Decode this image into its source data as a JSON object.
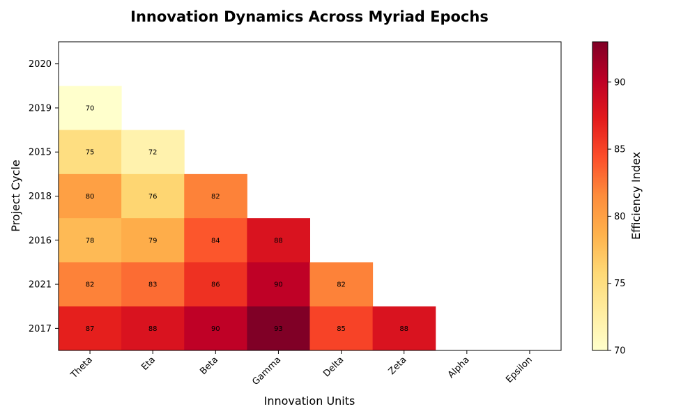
{
  "chart_data": {
    "type": "heatmap",
    "title": "Innovation Dynamics Across Myriad Epochs",
    "xlabel": "Innovation Units",
    "ylabel": "Project Cycle",
    "x_categories": [
      "Theta",
      "Eta",
      "Beta",
      "Gamma",
      "Delta",
      "Zeta",
      "Alpha",
      "Epsilon"
    ],
    "y_categories": [
      "2020",
      "2019",
      "2015",
      "2018",
      "2016",
      "2021",
      "2017"
    ],
    "values": [
      [
        null,
        null,
        null,
        null,
        null,
        null,
        null,
        null
      ],
      [
        70,
        null,
        null,
        null,
        null,
        null,
        null,
        null
      ],
      [
        75,
        72,
        null,
        null,
        null,
        null,
        null,
        null
      ],
      [
        80,
        76,
        82,
        null,
        null,
        null,
        null,
        null
      ],
      [
        78,
        79,
        84,
        88,
        null,
        null,
        null,
        null
      ],
      [
        82,
        83,
        86,
        90,
        82,
        null,
        null,
        null
      ],
      [
        87,
        88,
        90,
        93,
        85,
        88,
        null,
        null
      ]
    ],
    "colormap": "YlOrRd",
    "colorbar": {
      "label": "Efficiency Index",
      "range": [
        70,
        93
      ],
      "ticks": [
        70,
        75,
        80,
        85,
        90
      ]
    },
    "grid": false,
    "legend": "colorbar-right"
  }
}
